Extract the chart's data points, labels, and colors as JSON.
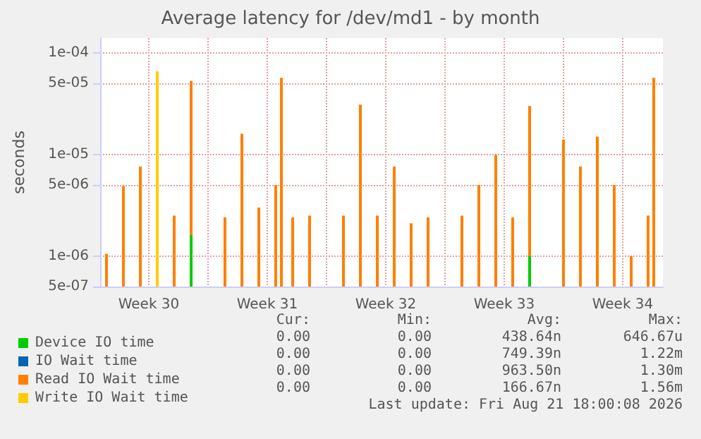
{
  "chart_data": {
    "type": "bar",
    "title": "Average latency for /dev/md1 - by month",
    "ylabel": "seconds",
    "log": "y",
    "grid": true,
    "legend": "bottom",
    "xlim": [
      "2026-07-19T15:00",
      "2026-08-21T21:00"
    ],
    "xticks": [
      {
        "value": "2026-07-22T12:00",
        "label": "Week 30"
      },
      {
        "value": "2026-07-26T00:00",
        "label": null
      },
      {
        "value": "2026-07-29T12:00",
        "label": "Week 31"
      },
      {
        "value": "2026-08-02T00:00",
        "label": null
      },
      {
        "value": "2026-08-05T12:00",
        "label": "Week 32"
      },
      {
        "value": "2026-08-09T00:00",
        "label": null
      },
      {
        "value": "2026-08-12T12:00",
        "label": "Week 33"
      },
      {
        "value": "2026-08-16T00:00",
        "label": null
      },
      {
        "value": "2026-08-19T12:00",
        "label": "Week 34"
      }
    ],
    "ylim": [
      5e-07,
      0.00014
    ],
    "yticks": [
      {
        "value": 5e-07,
        "label": "5e-07"
      },
      {
        "value": 1e-06,
        "label": "1e-06"
      },
      {
        "value": 5e-06,
        "label": "5e-06"
      },
      {
        "value": 1e-05,
        "label": "1e-05"
      },
      {
        "value": 5e-05,
        "label": "5e-05"
      },
      {
        "value": 0.0001,
        "label": "1e-04"
      }
    ],
    "series": [
      {
        "name": "Device IO time",
        "color": "#00cc00",
        "x": [
          "2026-07-25T00:00",
          "2026-08-14T00:00"
        ],
        "values": [
          1.6e-06,
          1e-06
        ]
      },
      {
        "name": "IO Wait time",
        "color": "#0066b3"
      },
      {
        "name": "Read IO Wait time",
        "color": "#ff8000",
        "x": [
          "2026-07-20T00:00",
          "2026-07-21T00:00",
          "2026-07-22T00:00",
          "2026-07-24T00:00",
          "2026-07-25T00:00",
          "2026-07-27T00:00",
          "2026-07-28T00:00",
          "2026-07-29T00:00",
          "2026-07-30T00:00",
          "2026-07-30T08:00",
          "2026-07-31T00:00",
          "2026-08-01T00:00",
          "2026-08-03T00:00",
          "2026-08-04T00:00",
          "2026-08-05T00:00",
          "2026-08-06T00:00",
          "2026-08-07T00:00",
          "2026-08-08T00:00",
          "2026-08-10T00:00",
          "2026-08-11T00:00",
          "2026-08-12T00:00",
          "2026-08-13T00:00",
          "2026-08-14T00:00",
          "2026-08-16T00:00",
          "2026-08-17T00:00",
          "2026-08-18T00:00",
          "2026-08-19T00:00",
          "2026-08-20T00:00",
          "2026-08-21T00:00",
          "2026-08-21T08:00"
        ],
        "values": [
          1.05e-06,
          4.9e-06,
          7.6e-06,
          2.5e-06,
          5.3e-05,
          2.4e-06,
          1.6e-05,
          3e-06,
          5e-06,
          5.7e-05,
          2.4e-06,
          2.5e-06,
          2.5e-06,
          3.1e-05,
          2.5e-06,
          7.6e-06,
          2.1e-06,
          2.4e-06,
          2.5e-06,
          5e-06,
          9.9e-06,
          2.4e-06,
          3e-05,
          1.4e-05,
          7.6e-06,
          1.5e-05,
          5e-06,
          1e-06,
          2.5e-06,
          5.7e-05
        ]
      },
      {
        "name": "Write IO Wait time",
        "color": "#ffcc00",
        "x": [
          "2026-07-23T00:00"
        ],
        "values": [
          6.6e-05
        ]
      }
    ],
    "annotations": [
      "Cur:",
      "Min:",
      "Avg:",
      "Max:",
      "0.00",
      "0.00",
      "438.64n",
      "646.67u",
      "0.00",
      "0.00",
      "749.39n",
      "1.22m",
      "0.00",
      "0.00",
      "963.50n",
      "1.30m",
      "0.00",
      "0.00",
      "166.67n",
      "1.56m",
      "Last update: Fri Aug 21 18:00:08 2026"
    ]
  }
}
